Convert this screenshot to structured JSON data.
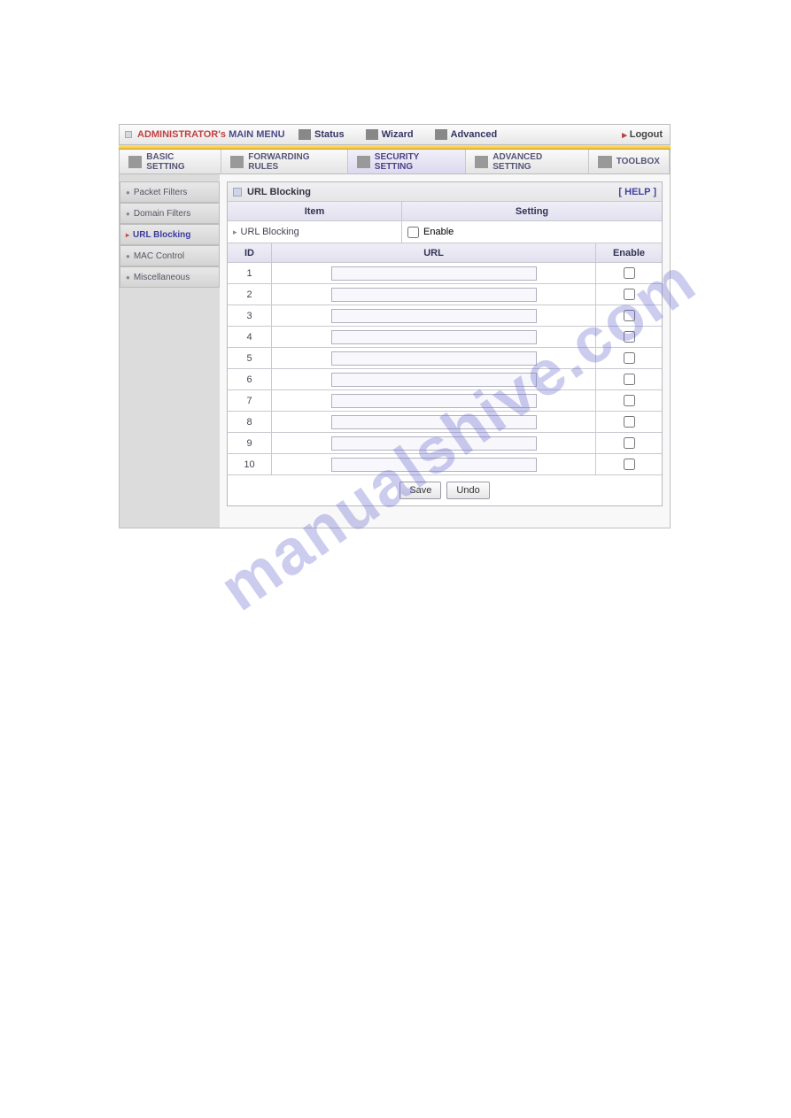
{
  "watermark_text": "manualshive.com",
  "topbar": {
    "title_red": "ADMINISTRATOR's",
    "title_blue": "MAIN MENU",
    "menu": [
      {
        "label": "Status"
      },
      {
        "label": "Wizard"
      },
      {
        "label": "Advanced"
      }
    ],
    "logout_label": "Logout"
  },
  "tabs": [
    {
      "label": "BASIC SETTING",
      "active": false
    },
    {
      "label": "FORWARDING RULES",
      "active": false
    },
    {
      "label": "SECURITY SETTING",
      "active": true
    },
    {
      "label": "ADVANCED SETTING",
      "active": false
    },
    {
      "label": "TOOLBOX",
      "active": false
    }
  ],
  "sidebar": {
    "items": [
      {
        "label": "Packet Filters",
        "active": false
      },
      {
        "label": "Domain Filters",
        "active": false
      },
      {
        "label": "URL Blocking",
        "active": true
      },
      {
        "label": "MAC Control",
        "active": false
      },
      {
        "label": "Miscellaneous",
        "active": false
      }
    ]
  },
  "panel": {
    "title": "URL Blocking",
    "help_label": "[ HELP ]",
    "columns": {
      "item_label": "Item",
      "setting_label": "Setting"
    },
    "row_item_label": "URL Blocking",
    "enable_label": "Enable",
    "table": {
      "headers": {
        "id": "ID",
        "url": "URL",
        "enable": "Enable"
      },
      "rows": [
        {
          "id": "1",
          "url": "",
          "enabled": false
        },
        {
          "id": "2",
          "url": "",
          "enabled": false
        },
        {
          "id": "3",
          "url": "",
          "enabled": false
        },
        {
          "id": "4",
          "url": "",
          "enabled": false
        },
        {
          "id": "5",
          "url": "",
          "enabled": false
        },
        {
          "id": "6",
          "url": "",
          "enabled": false
        },
        {
          "id": "7",
          "url": "",
          "enabled": false
        },
        {
          "id": "8",
          "url": "",
          "enabled": false
        },
        {
          "id": "9",
          "url": "",
          "enabled": false
        },
        {
          "id": "10",
          "url": "",
          "enabled": false
        }
      ]
    },
    "buttons": {
      "save": "Save",
      "undo": "Undo"
    }
  },
  "colors": {
    "accent_purple": "#4a4480",
    "header_grad_top": "#efeef6",
    "header_grad_bot": "#e2e0ef",
    "border": "#c8c8d0",
    "yellow_strip": "#f0c040",
    "sidebar_bg": "#dcdcdc"
  }
}
